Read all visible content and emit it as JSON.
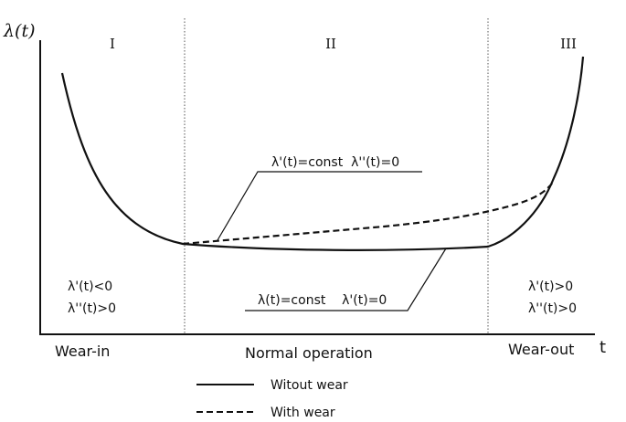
{
  "axes": {
    "y_label": "λ(t)",
    "x_label": "t"
  },
  "regions": {
    "I": {
      "numeral": "I",
      "name": "Wear-in",
      "cond1": "λ'(t)<0",
      "cond2": "λ''(t)>0"
    },
    "II": {
      "numeral": "II",
      "name": "Normal operation"
    },
    "III": {
      "numeral": "III",
      "name": "Wear-out",
      "cond1": "λ'(t)>0",
      "cond2": "λ''(t)>0"
    }
  },
  "annotations": {
    "with_wear": "λ'(t)=const  λ''(t)=0",
    "without_wear": "λ(t)=const    λ'(t)=0"
  },
  "legend": {
    "solid": "Witout wear",
    "dashed": "With wear"
  },
  "colors": {
    "ink": "#111111",
    "divider": "#555555"
  }
}
